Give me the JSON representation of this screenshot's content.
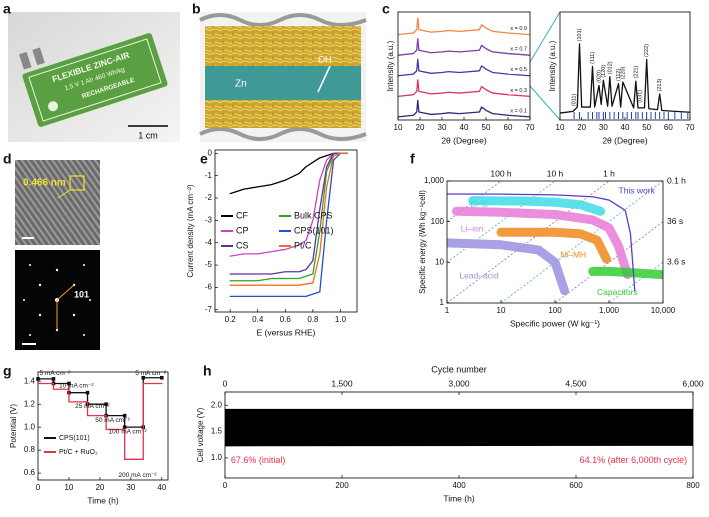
{
  "panel_labels": [
    "a",
    "b",
    "c",
    "d",
    "e",
    "f",
    "g",
    "h"
  ],
  "photo_a": {
    "lines": [
      "FLEXIBLE ZINC-AIR",
      "1.5 V  1 Ah  460 Wh/kg",
      "RECHARGEABLE"
    ],
    "scale_bar": "1 cm"
  },
  "schematic_b": {
    "labels": [
      "OH⁻",
      "Zn"
    ]
  },
  "micrograph_d": {
    "spacing": "0.466 nm",
    "spot": "101"
  },
  "chart_data": [
    {
      "type": "line",
      "xlabel": "2θ (Degree)",
      "ylabel": "Intensity (a.u.)",
      "xlim": [
        10,
        70
      ],
      "xticks": [
        10,
        20,
        30,
        40,
        50,
        60,
        70
      ],
      "ylim": [
        0,
        10.5
      ],
      "legend": "inline",
      "x": [
        10,
        17,
        18.5,
        19,
        19.5,
        25,
        30,
        33,
        38,
        47,
        48,
        50,
        53,
        60,
        70
      ],
      "series": [
        {
          "name": "x = 0.9",
          "color": "#f0883e",
          "values": [
            8.3,
            8.46,
            8.78,
            9.9,
            8.78,
            8.54,
            8.62,
            8.7,
            8.62,
            8.78,
            9.26,
            8.94,
            8.62,
            8.46,
            8.3
          ]
        },
        {
          "name": "x = 0.7",
          "color": "#7b3fa0",
          "values": [
            6.3,
            6.46,
            6.78,
            7.9,
            6.78,
            6.54,
            6.62,
            6.7,
            6.62,
            6.78,
            7.26,
            6.94,
            6.62,
            6.46,
            6.3
          ]
        },
        {
          "name": "x = 0.5",
          "color": "#3d3ba8",
          "values": [
            4.3,
            4.46,
            4.78,
            5.9,
            4.78,
            4.54,
            4.62,
            4.7,
            4.62,
            4.78,
            5.26,
            4.94,
            4.62,
            4.46,
            4.3
          ]
        },
        {
          "name": "x = 0.3",
          "color": "#d9336b",
          "values": [
            2.3,
            2.46,
            2.78,
            3.9,
            2.78,
            2.54,
            2.62,
            2.7,
            2.62,
            2.78,
            3.26,
            2.94,
            2.62,
            2.46,
            2.3
          ]
        },
        {
          "name": "x = 0.1",
          "color": "#2b2b7a",
          "values": [
            0.3,
            0.46,
            0.78,
            1.9,
            0.78,
            0.54,
            0.62,
            0.7,
            0.62,
            0.78,
            1.26,
            0.94,
            0.62,
            0.46,
            0.3
          ]
        }
      ]
    },
    {
      "type": "line",
      "xlabel": "2θ (Degree)",
      "ylabel": "Intensity (a.u.)",
      "xlim": [
        10,
        70
      ],
      "xticks": [
        10,
        20,
        30,
        40,
        50,
        60,
        70
      ],
      "ylim": [
        0,
        12.5
      ],
      "x": [
        10,
        16,
        18,
        19,
        20,
        24,
        25,
        26,
        28,
        29,
        30,
        32,
        33,
        34,
        37,
        38,
        39,
        44,
        45,
        46,
        49,
        50,
        51,
        55,
        56,
        57,
        70
      ],
      "series": [
        {
          "color": "#111111",
          "values": [
            0.8,
            1.0,
            1.5,
            8.8,
            1.5,
            1.5,
            6.2,
            1.5,
            4.0,
            1.8,
            4.6,
            1.6,
            5.0,
            1.6,
            4.2,
            1.5,
            4.4,
            1.4,
            4.5,
            1.4,
            1.4,
            7.0,
            1.3,
            1.2,
            3.0,
            1.1,
            0.9
          ]
        }
      ],
      "ref_ticks": {
        "color": "#2040c0",
        "x": [
          16.5,
          19,
          23,
          25,
          27,
          28,
          30,
          31,
          33,
          35,
          37,
          39,
          41,
          43,
          45,
          46,
          48,
          50,
          52,
          54,
          56,
          58,
          60,
          63,
          66,
          69
        ]
      },
      "annotation_rotation": -90,
      "annotations": [
        {
          "text": "(101)",
          "x": 19,
          "y": 9.1
        },
        {
          "text": "(111)",
          "x": 25,
          "y": 6.5
        },
        {
          "text": "(011)",
          "x": 16.5,
          "y": 1.6
        },
        {
          "text": "(020)",
          "x": 28,
          "y": 4.3
        },
        {
          "text": "(120)",
          "x": 30,
          "y": 4.9
        },
        {
          "text": "(012)",
          "x": 33,
          "y": 5.3
        },
        {
          "text": "(112)",
          "x": 37,
          "y": 4.5
        },
        {
          "text": "(220)",
          "x": 39,
          "y": 4.7
        },
        {
          "text": "(221)",
          "x": 45,
          "y": 4.8
        },
        {
          "text": "(031)",
          "x": 47,
          "y": 2.0
        },
        {
          "text": "(222)",
          "x": 50,
          "y": 7.3
        },
        {
          "text": "(213)",
          "x": 56,
          "y": 3.3
        }
      ]
    },
    {
      "type": "line",
      "xlabel": "E (versus RHE)",
      "ylabel": "Current density (mA cm⁻²)",
      "xlim": [
        0.09,
        1.12
      ],
      "xticks": [
        0.2,
        0.4,
        0.6,
        0.8,
        {
          "value": 1,
          "label": "1.0"
        }
      ],
      "ylim": [
        -7.1,
        0.15
      ],
      "yticks": [
        0,
        -1,
        -2,
        -3,
        -4,
        -5,
        -6,
        -7
      ],
      "legend": "center left",
      "x": [
        0.2,
        0.3,
        0.4,
        0.5,
        0.6,
        0.7,
        0.75,
        0.8,
        0.85,
        0.9,
        0.95,
        1.0,
        1.05
      ],
      "series": [
        {
          "name": "CF",
          "color": "#000000",
          "values": [
            -1.8,
            -1.6,
            -1.5,
            -1.4,
            -1.2,
            -0.9,
            -0.6,
            -0.4,
            -0.2,
            -0.1,
            0,
            0,
            0
          ]
        },
        {
          "name": "CP",
          "color": "#d040c8",
          "values": [
            -4.6,
            -4.5,
            -4.5,
            -4.4,
            -4.3,
            -4.1,
            -3.9,
            -3.0,
            -1.2,
            -0.3,
            0,
            0,
            0
          ]
        },
        {
          "name": "CS",
          "color": "#6030a0",
          "values": [
            -5.4,
            -5.4,
            -5.4,
            -5.4,
            -5.3,
            -5.3,
            -5.2,
            -4.8,
            -2.5,
            -0.6,
            0,
            0,
            0
          ]
        },
        {
          "name": "Bulk CPS",
          "color": "#33a02c",
          "values": [
            -5.7,
            -5.7,
            -5.7,
            -5.6,
            -5.6,
            -5.6,
            -5.5,
            -5.4,
            -3.5,
            -0.8,
            -0.1,
            0,
            0
          ]
        },
        {
          "name": "CPS(101)",
          "color": "#2050d0",
          "values": [
            -6.4,
            -6.4,
            -6.4,
            -6.4,
            -6.4,
            -6.4,
            -6.4,
            -6.3,
            -6.2,
            -3.0,
            -0.3,
            0,
            0
          ]
        },
        {
          "name": "Pt/C",
          "color": "#f07020",
          "values": [
            -5.9,
            -5.9,
            -5.9,
            -5.9,
            -5.9,
            -5.9,
            -5.85,
            -5.8,
            -4.5,
            -1.5,
            -0.1,
            0,
            0
          ]
        }
      ]
    },
    {
      "type": "line",
      "xlabel": "Specific power (W kg⁻¹)",
      "ylabel": "Specific energy (Wh kg⁻¹cell)",
      "xscale": "log",
      "yscale": "log",
      "xlim": [
        1,
        10000
      ],
      "xticks": [
        1,
        10,
        100,
        {
          "value": 1000,
          "label": "1,000"
        },
        {
          "value": 10000,
          "label": "10,000"
        }
      ],
      "ylim": [
        1,
        1000
      ],
      "yticks": [
        1,
        10,
        100,
        {
          "value": 1000,
          "label": "1,000"
        }
      ],
      "legend": "inline",
      "time_lines": [
        {
          "value": 100,
          "label": "100 h",
          "color": "#b040b0"
        },
        {
          "value": 10,
          "label": "10 h",
          "color": "#30b080"
        },
        {
          "value": 1,
          "label": "1 h",
          "color": "#b040b0"
        },
        {
          "value": 0.1,
          "label": "0.1 h",
          "color": "#30b080"
        },
        {
          "value": 0.01,
          "label": "36 s",
          "color": "#b040b0"
        },
        {
          "value": 0.001,
          "label": "3.6 s",
          "color": "#30b080"
        }
      ],
      "series": [
        {
          "name": "Li–S",
          "color": "#40dce6",
          "style": "band",
          "x": [
            3,
            30,
            100,
            300,
            700
          ],
          "values": [
            330,
            320,
            300,
            260,
            180
          ],
          "label_x": 2.7,
          "label_y": 260
        },
        {
          "name": "Li–ion",
          "color": "#e87ad8",
          "style": "band",
          "x": [
            1.5,
            10,
            100,
            500,
            1000,
            1500,
            2200
          ],
          "values": [
            180,
            170,
            150,
            110,
            70,
            25,
            5
          ],
          "label_x": 1.8,
          "label_y": 65
        },
        {
          "name": "Ni–MH",
          "color": "#f08a1c",
          "style": "band",
          "x": [
            10,
            100,
            300,
            600,
            900
          ],
          "values": [
            55,
            55,
            50,
            35,
            12
          ],
          "label_x": 125,
          "label_y": 15
        },
        {
          "name": "Lead–acid",
          "color": "#9a8fe0",
          "style": "band",
          "x": [
            1,
            10,
            50,
            100,
            150
          ],
          "values": [
            30,
            27,
            20,
            10,
            2
          ],
          "label_x": 1.7,
          "label_y": 4.5
        },
        {
          "name": "Capacitors",
          "color": "#33cc33",
          "style": "band",
          "x": [
            500,
            1000,
            3000,
            10000
          ],
          "values": [
            6,
            6,
            5.5,
            5
          ],
          "label_x": 600,
          "label_y": 1.8
        },
        {
          "name": "This work",
          "color": "#5b3cc4",
          "x": [
            1,
            10,
            100,
            500,
            1000,
            2000,
            2500,
            3000
          ],
          "values": [
            480,
            475,
            455,
            410,
            340,
            190,
            50,
            2
          ],
          "label_x": 1500,
          "label_y": 560
        }
      ]
    },
    {
      "type": "line",
      "xlabel": "Time (h)",
      "ylabel": "Potential (V)",
      "xlim": [
        0,
        42
      ],
      "xticks": [
        0,
        10,
        20,
        30,
        40
      ],
      "ylim": [
        0.54,
        1.48
      ],
      "yticks": [
        0.6,
        0.8,
        {
          "value": 1,
          "label": "1.0"
        },
        1.2,
        1.4
      ],
      "legend": "lower left",
      "x": [
        0,
        5,
        5,
        10,
        10,
        16,
        16,
        22,
        22,
        28,
        28,
        34,
        34,
        40
      ],
      "series": [
        {
          "name": "CPS(101)",
          "color": "#111111",
          "marker": "square",
          "values": [
            1.42,
            1.42,
            1.38,
            1.38,
            1.3,
            1.3,
            1.2,
            1.2,
            1.1,
            1.1,
            1.0,
            1.0,
            1.43,
            1.43
          ]
        },
        {
          "name": "Pt/C + RuO₂",
          "color": "#e8304a",
          "values": [
            1.38,
            1.38,
            1.33,
            1.33,
            1.22,
            1.22,
            1.1,
            1.1,
            0.98,
            0.98,
            0.72,
            0.72,
            1.38,
            1.38
          ]
        }
      ],
      "annotations": [
        {
          "text": "5 mA cm⁻²",
          "x": 0.5,
          "y": 1.47
        },
        {
          "text": "10 mA cm⁻²",
          "x": 6.8,
          "y": 1.36
        },
        {
          "text": "25 mA cm⁻²",
          "x": 12,
          "y": 1.18
        },
        {
          "text": "50 mA cm⁻²",
          "x": 18.5,
          "y": 1.06
        },
        {
          "text": "100 mA cm⁻²",
          "x": 22.8,
          "y": 0.96
        },
        {
          "text": "200 mA cm⁻²",
          "x": 26,
          "y": 0.58
        },
        {
          "text": "5 mA cm⁻²",
          "x": 31.4,
          "y": 1.47
        }
      ]
    },
    {
      "type": "line",
      "xlabel": "Time (h)",
      "ylabel": "Cell voltage (V)",
      "x2label": "Cycle number",
      "xlim": [
        0,
        800
      ],
      "xticks": [
        0,
        200,
        400,
        600,
        800
      ],
      "x2lim": [
        0,
        6000
      ],
      "x2ticks": [
        0,
        {
          "value": 1500,
          "label": "1,500"
        },
        {
          "value": 3000,
          "label": "3,000"
        },
        {
          "value": 4500,
          "label": "4,500"
        },
        {
          "value": 6000,
          "label": "6,000"
        }
      ],
      "ylim": [
        0.62,
        2.25
      ],
      "yticks": [
        {
          "value": 1,
          "label": "1.0"
        },
        1.5,
        {
          "value": 2,
          "label": "2.0"
        }
      ],
      "band": {
        "color": "#000000",
        "x": [
          0,
          800
        ],
        "upper": [
          1.93,
          1.93
        ],
        "lower": [
          1.22,
          1.23
        ]
      },
      "annotations": [
        {
          "text": "67.6% (initial)",
          "x": 10,
          "y": 0.95,
          "color": "#e8304a"
        },
        {
          "text": "64.1% (after 6,000th cycle)",
          "x": 790,
          "y": 0.95,
          "color": "#e8304a"
        }
      ]
    }
  ]
}
